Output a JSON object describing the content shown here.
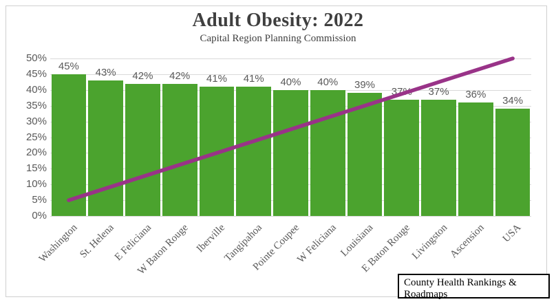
{
  "chart": {
    "title": "Adult Obesity: 2022",
    "subtitle": "Capital Region Planning Commission",
    "source_label": "County Health Rankings & Roadmaps",
    "colors": {
      "bar": "#4ba32e",
      "trendline": "#993388",
      "gridline": "#d9d9d9",
      "tick_label": "#595959",
      "title_text": "#3f3f3f",
      "frame_border": "#cfcfcf"
    }
  },
  "chart_data": {
    "type": "bar",
    "title": "Adult Obesity: 2022",
    "subtitle": "Capital Region Planning Commission",
    "categories": [
      "Washington",
      "St. Helena",
      "E Feliciana",
      "W Baton Rouge",
      "Iberville",
      "Tangipahoa",
      "Pointe Coupee",
      "W Feliciana",
      "Louisiana",
      "E Baton Rouge",
      "Livingston",
      "Ascension",
      "USA"
    ],
    "values": [
      45,
      43,
      42,
      42,
      41,
      41,
      40,
      40,
      39,
      37,
      37,
      36,
      34
    ],
    "bar_labels": [
      "45%",
      "43%",
      "42%",
      "42%",
      "41%",
      "41%",
      "40%",
      "40%",
      "39%",
      "37%",
      "37%",
      "36%",
      "34%"
    ],
    "xlabel": "",
    "ylabel": "",
    "ylim": [
      0,
      50
    ],
    "ytick_step": 5,
    "ytick_labels": [
      "0%",
      "5%",
      "10%",
      "15%",
      "20%",
      "25%",
      "30%",
      "35%",
      "40%",
      "45%",
      "50%"
    ],
    "grid": "horizontal",
    "legend_position": "none",
    "trendline": {
      "shape": "linear",
      "start_category": "Washington",
      "start_value": 5,
      "end_category": "USA",
      "end_value": 50
    },
    "annotation": "County Health Rankings & Roadmaps"
  }
}
